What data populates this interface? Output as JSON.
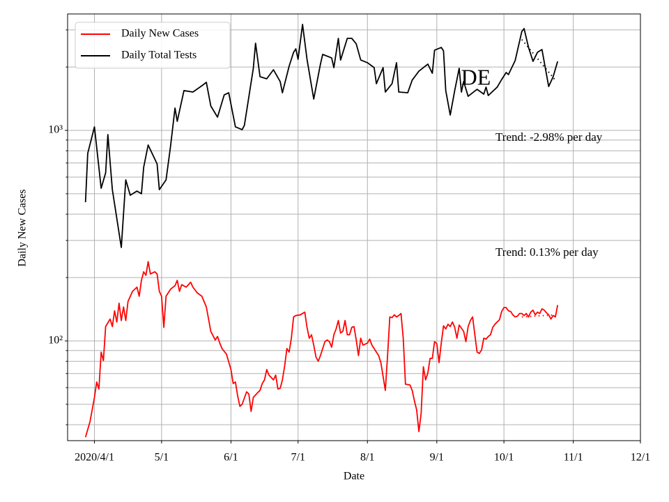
{
  "chart_data": {
    "type": "line",
    "xlabel": "Date",
    "ylabel": "Daily New Cases",
    "annotations": [
      "DE",
      "Trend: -2.98% per day",
      "Trend: 0.13% per day"
    ],
    "yscale": "log",
    "grid": true,
    "legend": "upper left",
    "xlim": [
      "2020-03-20",
      "2020-12-01"
    ],
    "ylim": [
      33.6,
      3573
    ],
    "xticks": [
      {
        "value": "2020-04-01",
        "label": "2020/4/1"
      },
      {
        "value": "2020-05-01",
        "label": "5/1"
      },
      {
        "value": "2020-06-01",
        "label": "6/1"
      },
      {
        "value": "2020-07-01",
        "label": "7/1"
      },
      {
        "value": "2020-08-01",
        "label": "8/1"
      },
      {
        "value": "2020-09-01",
        "label": "9/1"
      },
      {
        "value": "2020-10-01",
        "label": "10/1"
      },
      {
        "value": "2020-11-01",
        "label": "11/1"
      },
      {
        "value": "2020-12-01",
        "label": "12/1"
      }
    ],
    "yticks": [
      {
        "value": 100,
        "label": "10²"
      },
      {
        "value": 1000,
        "label": "10³"
      }
    ],
    "yminor": [
      40,
      50,
      60,
      70,
      80,
      90,
      200,
      300,
      400,
      500,
      600,
      700,
      800,
      900,
      2000,
      3000
    ],
    "series": [
      {
        "name": "Daily New Cases",
        "color": "#ff0000",
        "x": [
          "2020-03-28",
          "2020-03-30",
          "2020-04-01",
          "2020-04-02",
          "2020-04-03",
          "2020-04-04",
          "2020-04-05",
          "2020-04-06",
          "2020-04-08",
          "2020-04-09",
          "2020-04-10",
          "2020-04-11",
          "2020-04-12",
          "2020-04-13",
          "2020-04-14",
          "2020-04-15",
          "2020-04-16",
          "2020-04-18",
          "2020-04-20",
          "2020-04-21",
          "2020-04-22",
          "2020-04-23",
          "2020-04-24",
          "2020-04-25",
          "2020-04-26",
          "2020-04-28",
          "2020-04-29",
          "2020-04-30",
          "2020-05-01",
          "2020-05-02",
          "2020-05-03",
          "2020-05-05",
          "2020-05-07",
          "2020-05-08",
          "2020-05-09",
          "2020-05-10",
          "2020-05-12",
          "2020-05-14",
          "2020-05-15",
          "2020-05-17",
          "2020-05-19",
          "2020-05-21",
          "2020-05-22",
          "2020-05-23",
          "2020-05-25",
          "2020-05-26",
          "2020-05-27",
          "2020-05-28",
          "2020-05-30",
          "2020-06-01",
          "2020-06-02",
          "2020-06-03",
          "2020-06-04",
          "2020-06-05",
          "2020-06-06",
          "2020-06-08",
          "2020-06-09",
          "2020-06-10",
          "2020-06-11",
          "2020-06-13",
          "2020-06-14",
          "2020-06-15",
          "2020-06-16",
          "2020-06-17",
          "2020-06-18",
          "2020-06-20",
          "2020-06-21",
          "2020-06-22",
          "2020-06-23",
          "2020-06-24",
          "2020-06-25",
          "2020-06-26",
          "2020-06-27",
          "2020-06-28",
          "2020-06-29",
          "2020-06-30",
          "2020-07-02",
          "2020-07-04",
          "2020-07-05",
          "2020-07-06",
          "2020-07-07",
          "2020-07-08",
          "2020-07-09",
          "2020-07-10",
          "2020-07-11",
          "2020-07-13",
          "2020-07-14",
          "2020-07-15",
          "2020-07-16",
          "2020-07-17",
          "2020-07-18",
          "2020-07-19",
          "2020-07-20",
          "2020-07-21",
          "2020-07-22",
          "2020-07-23",
          "2020-07-24",
          "2020-07-25",
          "2020-07-26",
          "2020-07-27",
          "2020-07-28",
          "2020-07-29",
          "2020-07-30",
          "2020-08-01",
          "2020-08-02",
          "2020-08-03",
          "2020-08-05",
          "2020-08-06",
          "2020-08-07",
          "2020-08-08",
          "2020-08-09",
          "2020-08-10",
          "2020-08-11",
          "2020-08-12",
          "2020-08-13",
          "2020-08-14",
          "2020-08-15",
          "2020-08-16",
          "2020-08-17",
          "2020-08-18",
          "2020-08-20",
          "2020-08-21",
          "2020-08-22",
          "2020-08-23",
          "2020-08-24",
          "2020-08-25",
          "2020-08-26",
          "2020-08-27",
          "2020-08-28",
          "2020-08-29",
          "2020-08-30",
          "2020-08-31",
          "2020-09-01",
          "2020-09-02",
          "2020-09-03",
          "2020-09-04",
          "2020-09-05",
          "2020-09-06",
          "2020-09-07",
          "2020-09-08",
          "2020-09-09",
          "2020-09-10",
          "2020-09-11",
          "2020-09-13",
          "2020-09-14",
          "2020-09-15",
          "2020-09-16",
          "2020-09-17",
          "2020-09-18",
          "2020-09-19",
          "2020-09-20",
          "2020-09-21",
          "2020-09-22",
          "2020-09-23",
          "2020-09-24",
          "2020-09-25",
          "2020-09-26",
          "2020-09-27",
          "2020-09-28",
          "2020-09-29",
          "2020-09-30",
          "2020-10-01",
          "2020-10-02",
          "2020-10-03",
          "2020-10-04",
          "2020-10-05",
          "2020-10-06",
          "2020-10-07",
          "2020-10-08",
          "2020-10-09",
          "2020-10-10",
          "2020-10-11",
          "2020-10-12",
          "2020-10-13",
          "2020-10-14",
          "2020-10-15",
          "2020-10-16",
          "2020-10-17",
          "2020-10-18",
          "2020-10-19",
          "2020-10-20",
          "2020-10-21",
          "2020-10-22",
          "2020-10-23",
          "2020-10-24",
          "2020-10-25"
        ],
        "values": [
          34.9,
          41.3,
          53.9,
          63.8,
          59.1,
          88.5,
          80.7,
          117,
          127,
          117,
          139,
          123,
          151,
          125,
          145,
          125,
          154,
          172,
          180,
          163,
          194,
          213,
          205,
          238,
          208,
          213,
          208,
          172,
          163,
          116,
          163,
          176,
          183,
          194,
          172,
          185,
          180,
          190,
          180,
          169,
          163,
          145,
          127,
          111,
          101,
          105,
          97.7,
          92,
          86.5,
          73.1,
          62.8,
          63.8,
          54.8,
          48.9,
          50,
          57.3,
          56,
          46.3,
          53.9,
          56.9,
          58.2,
          62.8,
          65.3,
          73.1,
          68.8,
          65.3,
          68.8,
          59.1,
          59.5,
          65.3,
          76,
          92,
          88.5,
          103,
          130,
          132,
          133,
          137,
          116,
          103,
          107,
          95.5,
          83.9,
          80.1,
          85.2,
          99.2,
          101,
          99.2,
          93.4,
          107,
          114,
          125,
          109,
          111,
          125,
          107,
          107,
          116,
          117,
          101,
          85.2,
          103,
          95.5,
          97.7,
          102,
          95.5,
          88.5,
          85.2,
          78.9,
          67.8,
          58.2,
          85.2,
          130,
          129,
          133,
          130,
          132,
          135,
          103,
          62.3,
          61.8,
          58.2,
          51.9,
          47,
          37.1,
          45.3,
          75.4,
          65.3,
          70.5,
          82.6,
          82.6,
          99.2,
          97,
          78.9,
          97.7,
          118,
          114,
          120,
          117,
          123,
          116,
          103,
          119,
          111,
          99.2,
          117,
          125,
          130,
          107,
          88.5,
          87.2,
          90.5,
          103,
          102,
          105,
          107,
          116,
          120,
          123,
          126,
          138,
          144,
          144,
          139,
          138,
          133,
          130,
          131,
          135,
          135,
          132,
          135,
          130,
          137,
          140,
          133,
          137,
          135,
          142,
          140,
          136,
          133,
          127,
          132,
          130,
          148
        ]
      },
      {
        "name": "Daily Total Tests",
        "color": "#000000",
        "x": [
          "2020-03-28",
          "2020-03-29",
          "2020-04-01",
          "2020-04-04",
          "2020-04-06",
          "2020-04-07",
          "2020-04-09",
          "2020-04-13",
          "2020-04-15",
          "2020-04-17",
          "2020-04-20",
          "2020-04-22",
          "2020-04-23",
          "2020-04-25",
          "2020-04-29",
          "2020-04-30",
          "2020-05-03",
          "2020-05-05",
          "2020-05-07",
          "2020-05-08",
          "2020-05-11",
          "2020-05-15",
          "2020-05-19",
          "2020-05-21",
          "2020-05-23",
          "2020-05-26",
          "2020-05-29",
          "2020-05-31",
          "2020-06-03",
          "2020-06-06",
          "2020-06-07",
          "2020-06-11",
          "2020-06-12",
          "2020-06-14",
          "2020-06-17",
          "2020-06-20",
          "2020-06-23",
          "2020-06-24",
          "2020-06-27",
          "2020-06-29",
          "2020-06-30",
          "2020-07-01",
          "2020-07-03",
          "2020-07-05",
          "2020-07-08",
          "2020-07-11",
          "2020-07-12",
          "2020-07-16",
          "2020-07-17",
          "2020-07-19",
          "2020-07-20",
          "2020-07-23",
          "2020-07-25",
          "2020-07-27",
          "2020-07-29",
          "2020-08-01",
          "2020-08-04",
          "2020-08-05",
          "2020-08-08",
          "2020-08-09",
          "2020-08-12",
          "2020-08-14",
          "2020-08-15",
          "2020-08-19",
          "2020-08-21",
          "2020-08-24",
          "2020-08-28",
          "2020-08-30",
          "2020-08-31",
          "2020-09-03",
          "2020-09-04",
          "2020-09-05",
          "2020-09-07",
          "2020-09-09",
          "2020-09-11",
          "2020-09-12",
          "2020-09-13",
          "2020-09-15",
          "2020-09-19",
          "2020-09-22",
          "2020-09-23",
          "2020-09-24",
          "2020-09-28",
          "2020-09-30",
          "2020-10-02",
          "2020-10-03",
          "2020-10-06",
          "2020-10-09",
          "2020-10-10",
          "2020-10-12",
          "2020-10-14",
          "2020-10-16",
          "2020-10-18",
          "2020-10-21",
          "2020-10-23",
          "2020-10-25"
        ],
        "values": [
          456,
          778,
          1039,
          531,
          628,
          955,
          523,
          278,
          582,
          492,
          515,
          500,
          668,
          852,
          693,
          523,
          582,
          839,
          1276,
          1104,
          1545,
          1521,
          1629,
          1692,
          1306,
          1156,
          1475,
          1509,
          1039,
          1008,
          1055,
          1972,
          2594,
          1799,
          1758,
          1941,
          1706,
          1509,
          2017,
          2349,
          2440,
          2176,
          3186,
          2176,
          1409,
          2064,
          2296,
          2209,
          1986,
          2736,
          2159,
          2736,
          2736,
          2575,
          2159,
          2096,
          1986,
          1667,
          1986,
          1521,
          1667,
          2096,
          1521,
          1509,
          1732,
          1911,
          2064,
          1868,
          2404,
          2477,
          2385,
          1545,
          1183,
          1545,
          1972,
          1521,
          1706,
          1452,
          1567,
          1487,
          1605,
          1464,
          1605,
          1745,
          1883,
          1840,
          2143,
          2952,
          3044,
          2477,
          2128,
          2349,
          2421,
          1616,
          1799,
          2128
        ]
      }
    ],
    "trends": [
      {
        "color": "#000000",
        "x": [
          "2020-10-09",
          "2020-10-24"
        ],
        "values": [
          2700,
          1730
        ]
      },
      {
        "color": "#ff0000",
        "x": [
          "2020-10-09",
          "2020-10-24"
        ],
        "values": [
          130,
          133
        ]
      }
    ]
  }
}
